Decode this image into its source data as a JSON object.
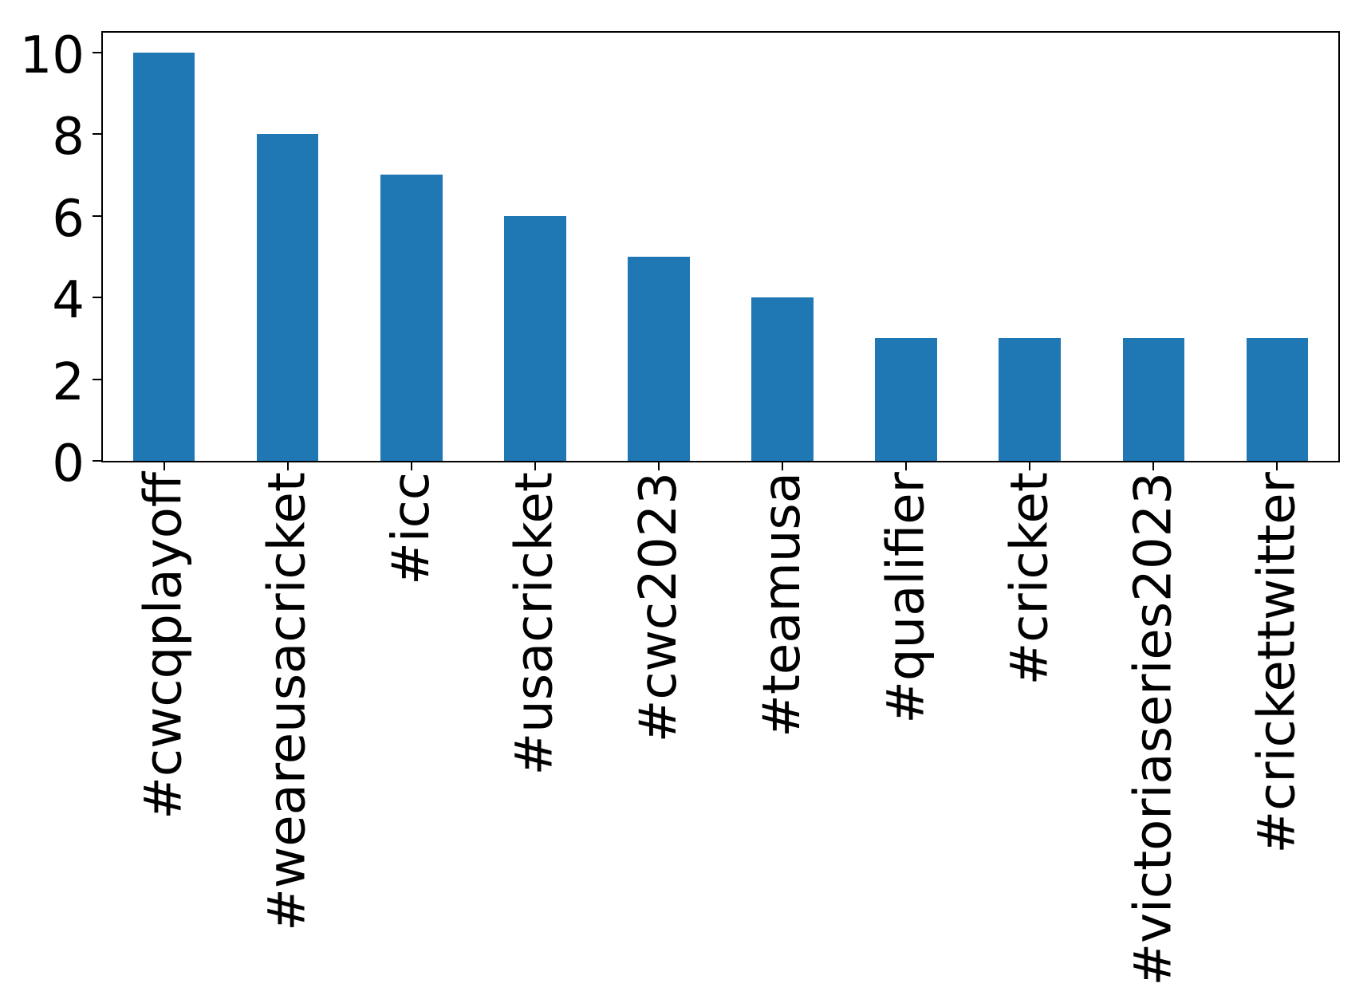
{
  "chart_data": {
    "type": "bar",
    "title": "",
    "xlabel": "",
    "ylabel": "",
    "categories": [
      "#cwcqplayoff",
      "#weareusacricket",
      "#icc",
      "#usacricket",
      "#cwc2023",
      "#teamusa",
      "#qualifier",
      "#cricket",
      "#victoriaseries2023",
      "#crickettwitter"
    ],
    "values": [
      10,
      8,
      7,
      6,
      5,
      4,
      3,
      3,
      3,
      3
    ],
    "yticks": [
      0,
      2,
      4,
      6,
      8,
      10
    ],
    "ylim": [
      0,
      10.5
    ],
    "bar_color": "#1f77b4",
    "axis_color": "#000000",
    "background_color": "#ffffff",
    "bar_width_fraction": 0.5,
    "x_tick_label_rotation_deg": 90,
    "grid": false,
    "legend": "none"
  }
}
